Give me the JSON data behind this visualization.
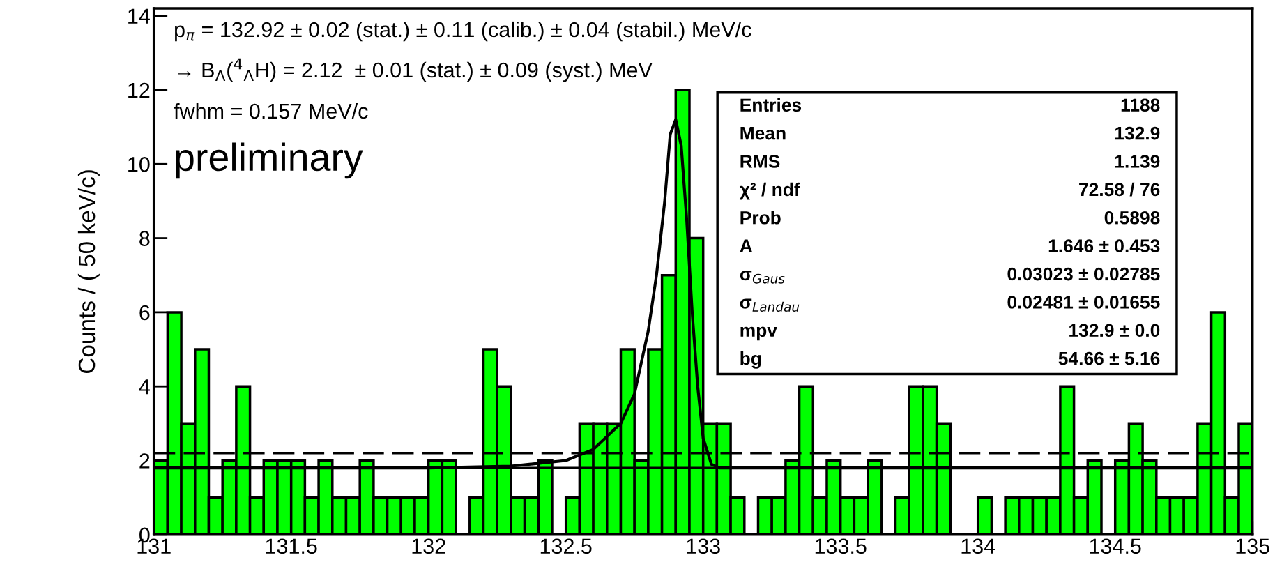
{
  "chart_data": {
    "type": "histogram",
    "ylabel": "Counts / ( 50 keV/c)",
    "bins": [
      131.0,
      131.05,
      131.1,
      131.15,
      131.2,
      131.25,
      131.3,
      131.35,
      131.4,
      131.45,
      131.5,
      131.55,
      131.6,
      131.65,
      131.7,
      131.75,
      131.8,
      131.85,
      131.9,
      131.95,
      132.0,
      132.05,
      132.1,
      132.15,
      132.2,
      132.25,
      132.3,
      132.35,
      132.4,
      132.45,
      132.5,
      132.55,
      132.6,
      132.65,
      132.7,
      132.75,
      132.8,
      132.85,
      132.9,
      132.95,
      133.0,
      133.05,
      133.1,
      133.15,
      133.2,
      133.25,
      133.3,
      133.35,
      133.4,
      133.45,
      133.5,
      133.55,
      133.6,
      133.65,
      133.7,
      133.75,
      133.8,
      133.85,
      133.9,
      133.95,
      134.0,
      134.05,
      134.1,
      134.15,
      134.2,
      134.25,
      134.3,
      134.35,
      134.4,
      134.45,
      134.5,
      134.55,
      134.6,
      134.65,
      134.7,
      134.75,
      134.8,
      134.85,
      134.9,
      134.95,
      135.0
    ],
    "series": [
      {
        "color": "#00ff00",
        "values": [
          2,
          6,
          3,
          5,
          1,
          2,
          4,
          1,
          2,
          2,
          2,
          1,
          2,
          1,
          1,
          2,
          1,
          1,
          1,
          1,
          2,
          2,
          0,
          1,
          5,
          4,
          1,
          1,
          2,
          0,
          1,
          3,
          3,
          3,
          5,
          2,
          5,
          7,
          12,
          8,
          3,
          3,
          1,
          0,
          1,
          1,
          2,
          4,
          1,
          2,
          1,
          1,
          2,
          0,
          1,
          4,
          4,
          3,
          0,
          0,
          1,
          0,
          1,
          1,
          1,
          1,
          4,
          1,
          2,
          0,
          2,
          3,
          2,
          1,
          1,
          1,
          3,
          6,
          1,
          3
        ]
      },
      {
        "type": "line",
        "color": "#000000",
        "x": [
          131.0,
          131.5,
          132.0,
          132.3,
          132.5,
          132.6,
          132.7,
          132.75,
          132.8,
          132.83,
          132.86,
          132.88,
          132.9,
          132.92,
          132.94,
          132.96,
          132.98,
          133.0,
          133.03,
          133.06,
          133.5,
          134.0,
          135.0
        ],
        "values": [
          1.8,
          1.8,
          1.8,
          1.85,
          2.0,
          2.3,
          3.0,
          3.8,
          5.5,
          7.0,
          9.0,
          10.8,
          11.2,
          10.5,
          8.5,
          6.0,
          4.0,
          2.6,
          1.9,
          1.8,
          1.8,
          1.8,
          1.8
        ]
      }
    ],
    "ref_lines": [
      {
        "axis": "y",
        "value": 1.8,
        "color": "#000000",
        "line_style": "solid"
      },
      {
        "axis": "y",
        "value": 2.2,
        "color": "#000000",
        "line_style": "dashed"
      }
    ],
    "annotations": [
      "p$_{π}$ = 132.92 ± 0.02 (stat.) ± 0.11 (calib.) ± 0.04 (stabil.) MeV/c",
      "→ B$_{Λ}$($^{4}$$_{Λ}$H) = 2.12  ± 0.01 (stat.) ± 0.09 (syst.) MeV",
      "fwhm = 0.157 MeV/c",
      "preliminary",
      "Entries",
      "1188",
      "Mean",
      "132.9",
      "RMS",
      "1.139",
      "χ² / ndf",
      "72.58 / 76",
      "Prob",
      "0.5898",
      "A",
      "1.646 ± 0.453",
      "σ$_{Gaus}$",
      "0.03023 ± 0.02785",
      "σ$_{Landau}$",
      "0.02481 ± 0.01655",
      "mpv",
      "132.9 ± 0.0",
      "bg",
      "54.66 ± 5.16"
    ],
    "xlim": [
      131,
      135
    ],
    "xticks": [
      131,
      131.5,
      132,
      132.5,
      133,
      133.5,
      134,
      134.5,
      135
    ],
    "ylim": [
      0,
      14.2
    ],
    "yticks": [
      0,
      2,
      4,
      6,
      8,
      10,
      12,
      14
    ],
    "grid": false,
    "legend": false
  }
}
